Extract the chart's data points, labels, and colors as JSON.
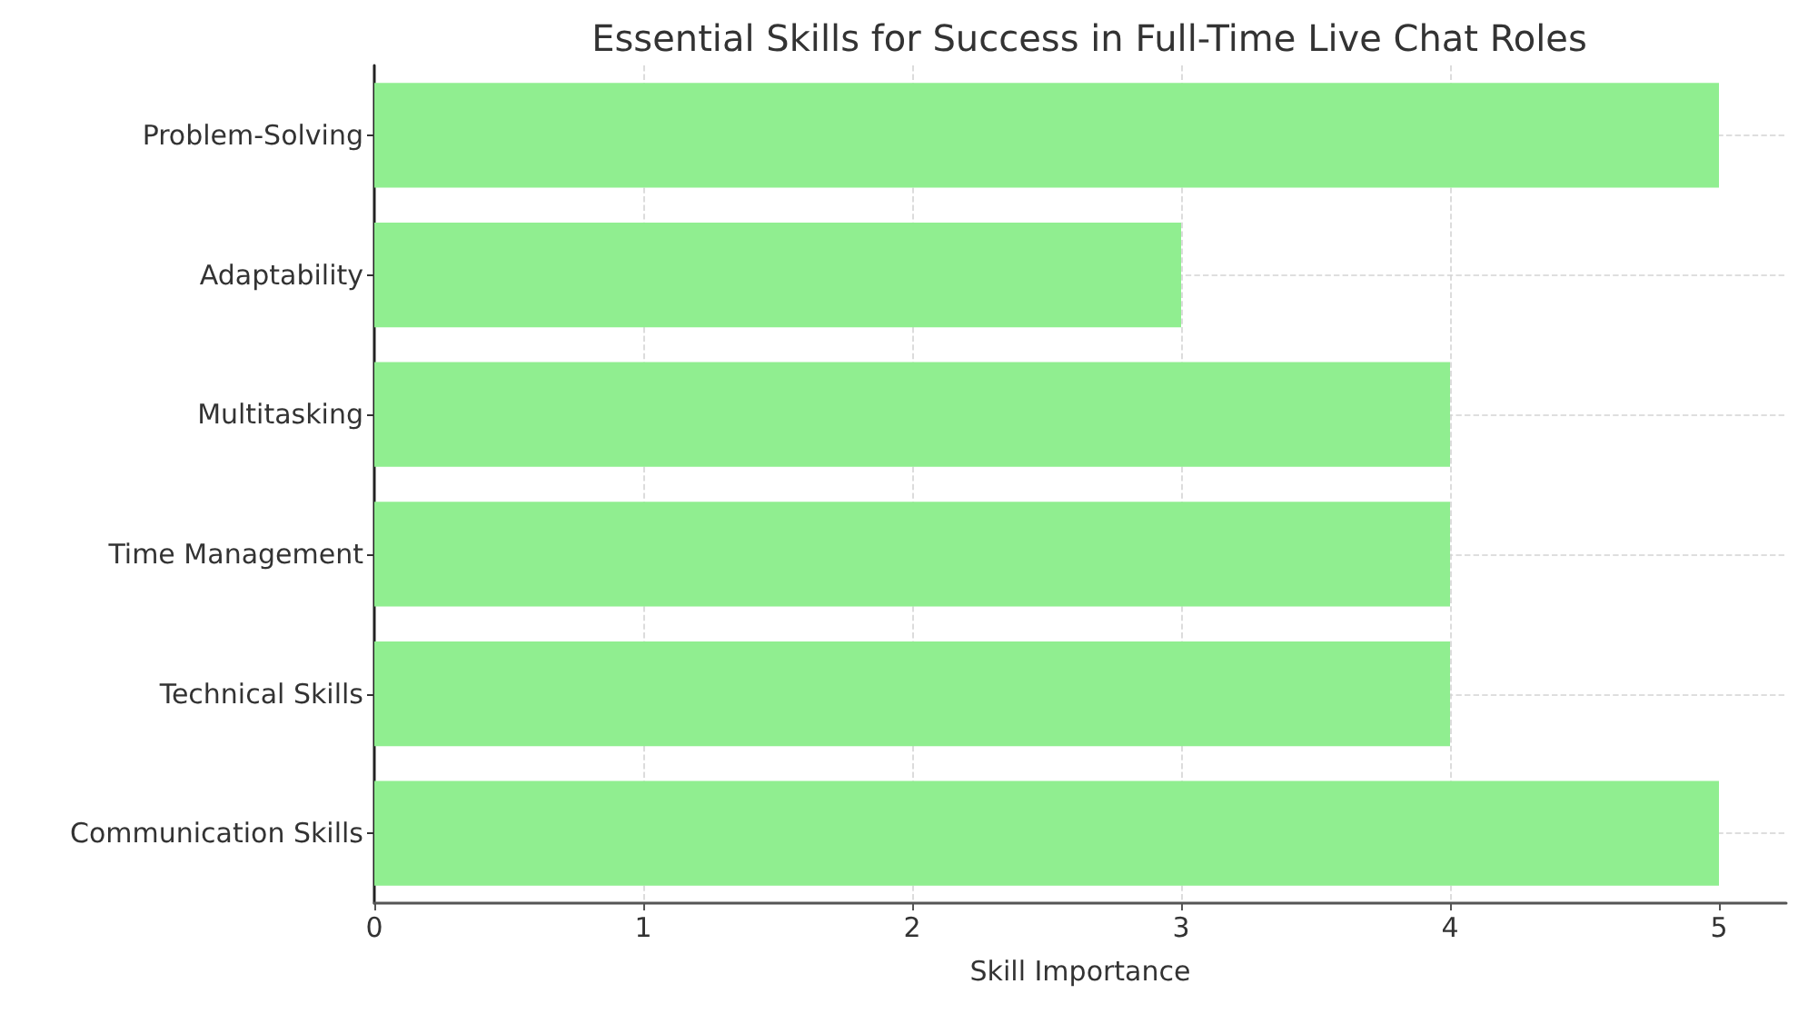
{
  "chart_data": {
    "type": "bar",
    "title": "Essential Skills for Success in Full-Time Live Chat Roles",
    "xlabel": "Skill Importance",
    "orientation": "horizontal",
    "categories": [
      "Problem-Solving",
      "Adaptability",
      "Multitasking",
      "Time Management",
      "Technical Skills",
      "Communication Skills"
    ],
    "values": [
      5,
      3,
      4,
      4,
      4,
      5
    ],
    "color": "#90ee90",
    "xlim": [
      0,
      5.25
    ],
    "xticks": [
      0,
      1,
      2,
      3,
      4,
      5
    ],
    "grid": true
  }
}
